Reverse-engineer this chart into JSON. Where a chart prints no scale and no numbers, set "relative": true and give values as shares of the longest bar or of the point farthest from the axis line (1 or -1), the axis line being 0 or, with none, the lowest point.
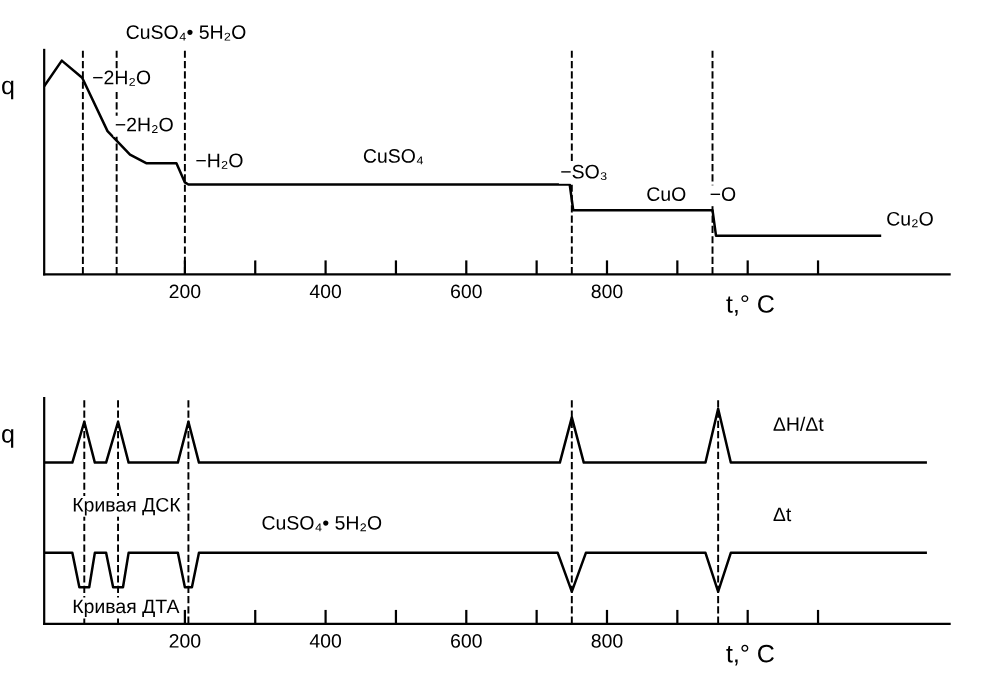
{
  "chart_data": [
    {
      "type": "line",
      "relative": true,
      "title": "CuSO₄• 5H₂O",
      "ylabel": "q",
      "xlabel": "t,° C",
      "xlim": [
        0,
        1287
      ],
      "xticks": [
        {
          "value": 200,
          "label": "200"
        },
        {
          "value": 300,
          "label": null
        },
        {
          "value": 400,
          "label": "400"
        },
        {
          "value": 500,
          "label": null
        },
        {
          "value": 600,
          "label": "600"
        },
        {
          "value": 700,
          "label": null
        },
        {
          "value": 800,
          "label": "800"
        },
        {
          "value": 900,
          "label": null
        },
        {
          "value": 1000,
          "label": null
        },
        {
          "value": 1100,
          "label": null
        }
      ],
      "series": [
        {
          "color": "#000000",
          "x": [
            0,
            25,
            54,
            90,
            122,
            145,
            188,
            200,
            205,
            747,
            752,
            950,
            955,
            1188
          ],
          "values": [
            0.88,
            1.0,
            0.92,
            0.67,
            0.56,
            0.52,
            0.52,
            0.43,
            0.42,
            0.42,
            0.3,
            0.3,
            0.18,
            0.18
          ]
        }
      ],
      "ref_lines": [
        {
          "axis": "x",
          "value": 55,
          "line_style": "dashed"
        },
        {
          "axis": "x",
          "value": 103,
          "line_style": "dashed"
        },
        {
          "axis": "x",
          "value": 200,
          "line_style": "dashed"
        },
        {
          "axis": "x",
          "value": 750,
          "line_style": "dashed"
        },
        {
          "axis": "x",
          "value": 950,
          "line_style": "dashed"
        }
      ],
      "annotations": [
        "−2H₂O",
        "−2H₂O",
        "−H₂O",
        "CuSO₄",
        "−SO₃",
        "CuO",
        "−O",
        "Cu₂O"
      ],
      "grid": false,
      "legend": false,
      "line_style": "solid"
    },
    {
      "type": "line",
      "relative": true,
      "ylabel": "q",
      "xlabel": "t,° C",
      "xlim": [
        0,
        1287
      ],
      "xticks": [
        {
          "value": 200,
          "label": "200"
        },
        {
          "value": 300,
          "label": null
        },
        {
          "value": 400,
          "label": "400"
        },
        {
          "value": 500,
          "label": null
        },
        {
          "value": 600,
          "label": "600"
        },
        {
          "value": 700,
          "label": null
        },
        {
          "value": 800,
          "label": "800"
        },
        {
          "value": 900,
          "label": null
        },
        {
          "value": 1000,
          "label": null
        },
        {
          "value": 1100,
          "label": null
        }
      ],
      "series": [
        {
          "name": "ΔH/Δt",
          "color": "#000000",
          "x": [
            0,
            40,
            57,
            72,
            88,
            105,
            120,
            190,
            205,
            220,
            733,
            750,
            767,
            940,
            958,
            976,
            1253
          ],
          "values": [
            0.75,
            0.75,
            0.94,
            0.75,
            0.75,
            0.94,
            0.75,
            0.75,
            0.94,
            0.75,
            0.75,
            0.96,
            0.75,
            0.75,
            1.0,
            0.75,
            0.75
          ]
        },
        {
          "name": "Δt",
          "color": "#000000",
          "x": [
            0,
            40,
            50,
            64,
            72,
            88,
            98,
            112,
            120,
            190,
            200,
            210,
            220,
            730,
            750,
            770,
            940,
            958,
            976,
            1253
          ],
          "values": [
            0.33,
            0.33,
            0.17,
            0.17,
            0.33,
            0.33,
            0.17,
            0.17,
            0.33,
            0.33,
            0.17,
            0.17,
            0.33,
            0.33,
            0.15,
            0.33,
            0.33,
            0.15,
            0.33,
            0.33
          ]
        }
      ],
      "ref_lines": [
        {
          "axis": "x",
          "value": 57,
          "line_style": "dashed"
        },
        {
          "axis": "x",
          "value": 105,
          "line_style": "dashed"
        },
        {
          "axis": "x",
          "value": 205,
          "line_style": "dashed"
        },
        {
          "axis": "x",
          "value": 750,
          "line_style": "dashed"
        },
        {
          "axis": "x",
          "value": 958,
          "line_style": "dashed"
        }
      ],
      "annotations": [
        "Кривая ДСК",
        "CuSO₄• 5H₂O",
        "Кривая ДТА"
      ],
      "grid": false,
      "legend": false,
      "line_style": "solid"
    }
  ]
}
